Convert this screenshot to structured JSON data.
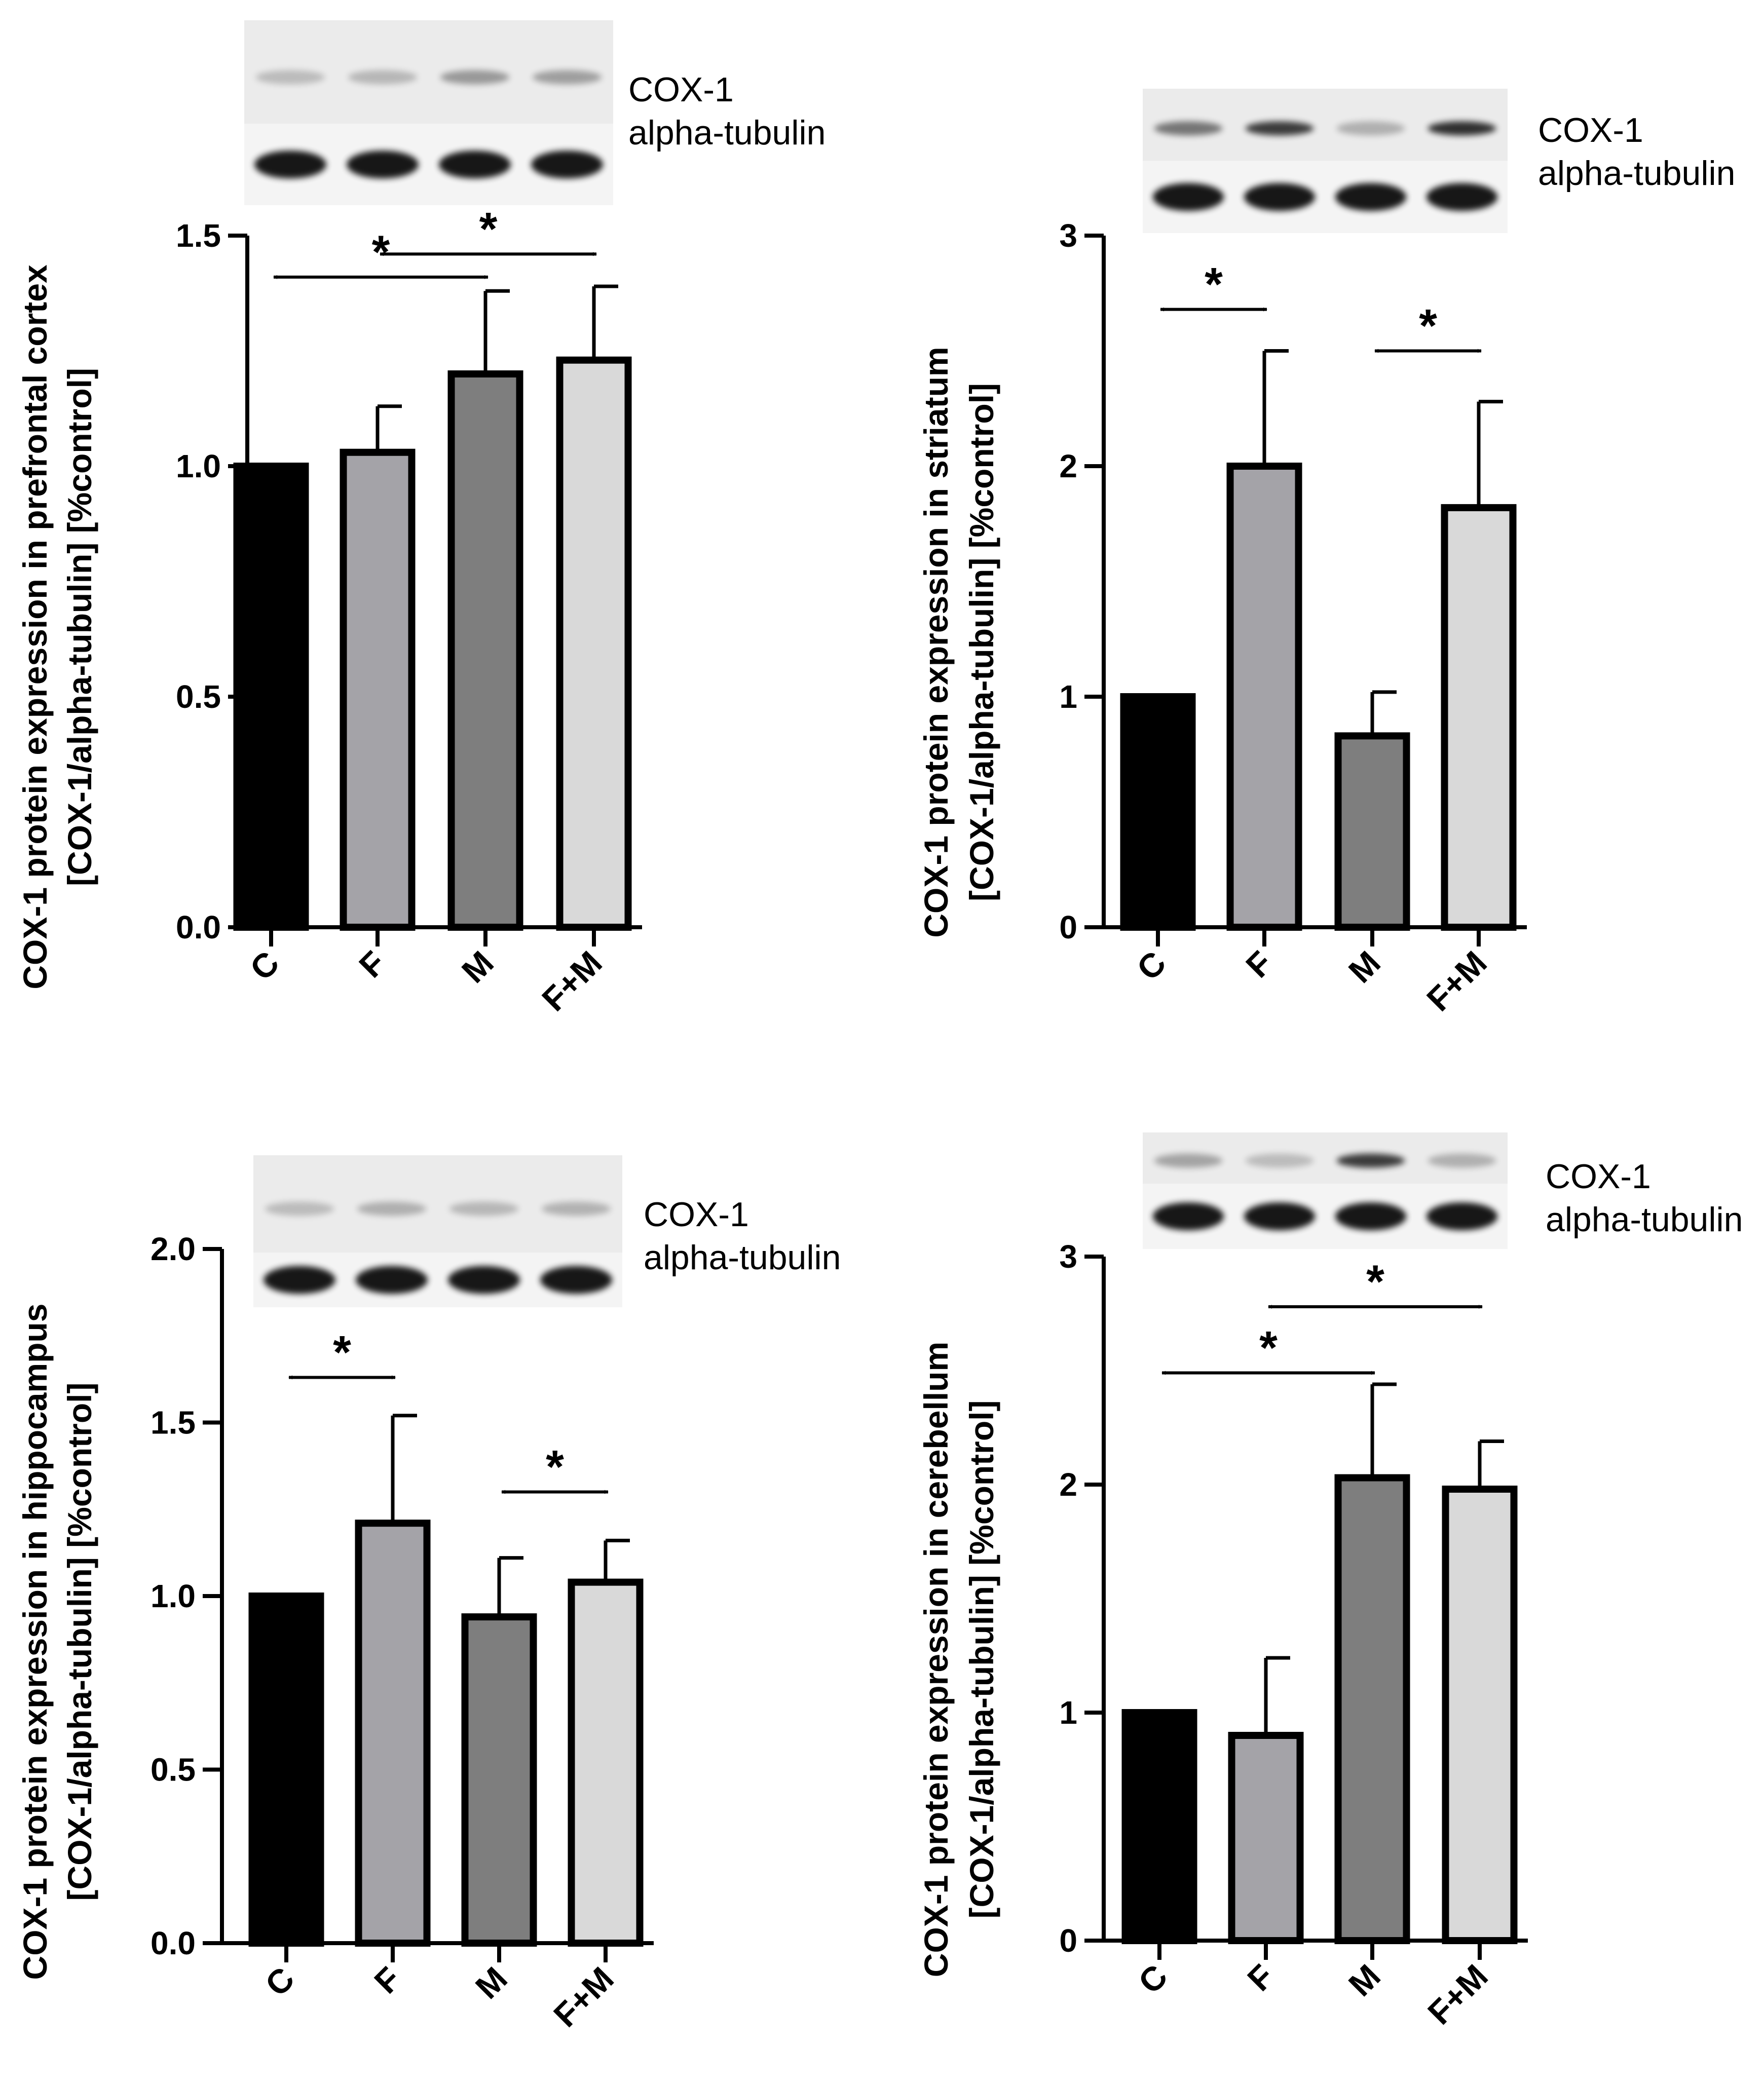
{
  "chart_data": [
    {
      "type": "bar",
      "region": "prefrontal cortex",
      "ylabel_line1": "COX-1 protein expression in prefrontal cortex",
      "ylabel_line2": "[COX-1/alpha-tubulin] [%control]",
      "categories": [
        "C",
        "F",
        "M",
        "F+M"
      ],
      "values": [
        1.0,
        1.03,
        1.2,
        1.23
      ],
      "errors": [
        0,
        0.1,
        0.18,
        0.16
      ],
      "colors": [
        "#000000",
        "#a4a3a8",
        "#7e7e7e",
        "#d9d9d9"
      ],
      "ylim": [
        0,
        1.5
      ],
      "yticks": [
        0.0,
        0.5,
        1.0,
        1.5
      ],
      "ytick_labels": [
        "0.0",
        "0.5",
        "1.0",
        "1.5"
      ],
      "blot_labels": [
        "COX-1",
        "alpha-tubulin"
      ],
      "blot_cox1_intensity": [
        0.2,
        0.22,
        0.35,
        0.32
      ],
      "significance": [
        {
          "from": "C",
          "to": "M",
          "y": 1.41,
          "label": "*"
        },
        {
          "from": "F",
          "to": "F+M",
          "y": 1.46,
          "label": "*"
        }
      ]
    },
    {
      "type": "bar",
      "region": "striatum",
      "ylabel_line1": "COX-1 protein expression in striatum",
      "ylabel_line2": "[COX-1/alpha-tubulin] [%control]",
      "categories": [
        "C",
        "F",
        "M",
        "F+M"
      ],
      "values": [
        1.0,
        2.0,
        0.83,
        1.82
      ],
      "errors": [
        0,
        0.5,
        0.19,
        0.46
      ],
      "colors": [
        "#000000",
        "#a4a3a8",
        "#7e7e7e",
        "#d9d9d9"
      ],
      "ylim": [
        0,
        3
      ],
      "yticks": [
        0,
        1,
        2,
        3
      ],
      "ytick_labels": [
        "0",
        "1",
        "2",
        "3"
      ],
      "blot_labels": [
        "COX-1",
        "alpha-tubulin"
      ],
      "blot_cox1_intensity": [
        0.5,
        0.75,
        0.25,
        0.8
      ],
      "significance": [
        {
          "from": "C",
          "to": "F",
          "y": 2.68,
          "label": "*"
        },
        {
          "from": "M",
          "to": "F+M",
          "y": 2.5,
          "label": "*"
        }
      ]
    },
    {
      "type": "bar",
      "region": "hippocampus",
      "ylabel_line1": "COX-1 protein expression in hippocampus",
      "ylabel_line2": "[COX-1/alpha-tubulin] [%control]",
      "categories": [
        "C",
        "F",
        "M",
        "F+M"
      ],
      "values": [
        1.0,
        1.21,
        0.94,
        1.04
      ],
      "errors": [
        0,
        0.31,
        0.17,
        0.12
      ],
      "colors": [
        "#000000",
        "#a4a3a8",
        "#7e7e7e",
        "#d9d9d9"
      ],
      "ylim": [
        0,
        2.0
      ],
      "yticks": [
        0.0,
        0.5,
        1.0,
        1.5,
        2.0
      ],
      "ytick_labels": [
        "0.0",
        "0.5",
        "1.0",
        "1.5",
        "2.0"
      ],
      "blot_labels": [
        "COX-1",
        "alpha-tubulin"
      ],
      "blot_cox1_intensity": [
        0.2,
        0.25,
        0.22,
        0.24
      ],
      "significance": [
        {
          "from": "C",
          "to": "F",
          "y": 1.63,
          "label": "*"
        },
        {
          "from": "M",
          "to": "F+M",
          "y": 1.3,
          "label": "*"
        }
      ]
    },
    {
      "type": "bar",
      "region": "cerebellum",
      "ylabel_line1": "COX-1 protein expression in cerebellum",
      "ylabel_line2": "[COX-1/alpha-tubulin] [%control]",
      "categories": [
        "C",
        "F",
        "M",
        "F+M"
      ],
      "values": [
        1.0,
        0.9,
        2.03,
        1.98
      ],
      "errors": [
        0,
        0.34,
        0.41,
        0.21
      ],
      "colors": [
        "#000000",
        "#a4a3a8",
        "#7e7e7e",
        "#d9d9d9"
      ],
      "ylim": [
        0,
        3
      ],
      "yticks": [
        0,
        1,
        2,
        3
      ],
      "ytick_labels": [
        "0",
        "1",
        "2",
        "3"
      ],
      "blot_labels": [
        "COX-1",
        "alpha-tubulin"
      ],
      "blot_cox1_intensity": [
        0.3,
        0.2,
        0.75,
        0.25
      ],
      "significance": [
        {
          "from": "C",
          "to": "M",
          "y": 2.49,
          "label": "*"
        },
        {
          "from": "F",
          "to": "F+M",
          "y": 2.78,
          "label": "*"
        }
      ]
    }
  ]
}
